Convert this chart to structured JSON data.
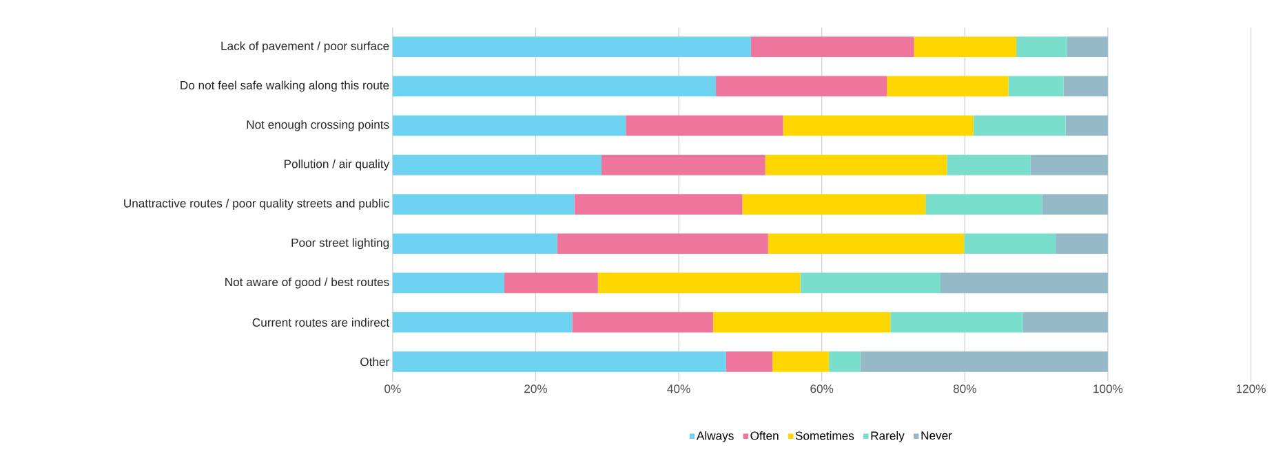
{
  "chart_data": {
    "type": "bar",
    "orientation": "horizontal",
    "stacked": true,
    "categories": [
      "Lack of pavement / poor surface",
      "Do not feel safe walking along this route",
      "Not enough crossing points",
      "Pollution / air quality",
      "Unattractive routes / poor quality streets and public",
      "Poor street lighting",
      "Not aware of good / best routes",
      "Current routes are indirect",
      "Other"
    ],
    "series": [
      {
        "name": "Always",
        "color": "#6dd3f1",
        "values": [
          50.1,
          45.2,
          32.6,
          29.2,
          25.4,
          23.0,
          15.6,
          25.1,
          46.6
        ]
      },
      {
        "name": "Often",
        "color": "#ee759b",
        "values": [
          22.8,
          23.9,
          22.0,
          22.9,
          23.5,
          29.5,
          13.1,
          19.7,
          6.5
        ]
      },
      {
        "name": "Sometimes",
        "color": "#ffd700",
        "values": [
          14.3,
          17.0,
          26.6,
          25.4,
          25.6,
          27.4,
          28.3,
          24.8,
          7.9
        ]
      },
      {
        "name": "Rarely",
        "color": "#7adecc",
        "values": [
          7.1,
          7.7,
          12.9,
          11.7,
          16.3,
          12.8,
          19.6,
          18.5,
          4.4
        ]
      },
      {
        "name": "Never",
        "color": "#96b9c8",
        "values": [
          5.7,
          6.2,
          5.9,
          10.8,
          9.2,
          7.3,
          23.4,
          11.9,
          34.6
        ]
      }
    ],
    "xlim": [
      0,
      120
    ],
    "xticks": [
      {
        "value": 0,
        "label": "0%"
      },
      {
        "value": 20,
        "label": "20%"
      },
      {
        "value": 40,
        "label": "40%"
      },
      {
        "value": 60,
        "label": "60%"
      },
      {
        "value": 80,
        "label": "80%"
      },
      {
        "value": 100,
        "label": "100%"
      },
      {
        "value": 120,
        "label": "120%"
      }
    ],
    "grid": "x",
    "legend": "bottom"
  }
}
